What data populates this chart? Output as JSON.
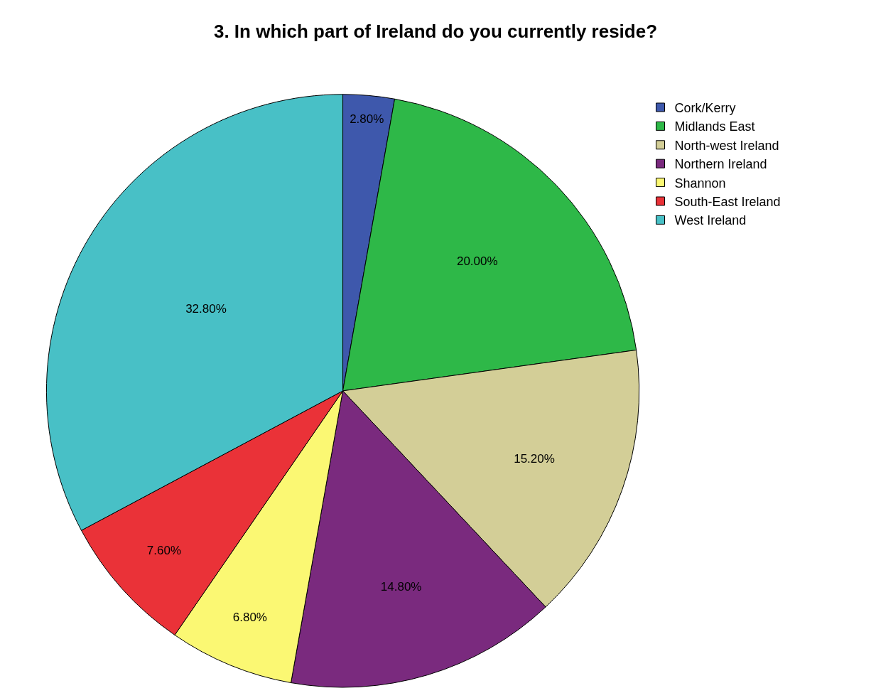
{
  "chart_data": {
    "type": "pie",
    "title": "3. In which part of Ireland do you currently reside?",
    "categories": [
      "Cork/Kerry",
      "Midlands East",
      "North-west Ireland",
      "Northern Ireland",
      "Shannon",
      "South-East Ireland",
      "West Ireland"
    ],
    "values": [
      2.8,
      20.0,
      15.2,
      14.8,
      6.8,
      7.6,
      32.8
    ],
    "value_labels": [
      "2.80%",
      "20.00%",
      "15.20%",
      "14.80%",
      "6.80%",
      "7.60%",
      "32.80%"
    ],
    "colors": [
      "#3e58ac",
      "#2eb848",
      "#d3ce97",
      "#7a2a7e",
      "#fbf873",
      "#ea3238",
      "#48c0c6"
    ],
    "legend": "top right"
  }
}
